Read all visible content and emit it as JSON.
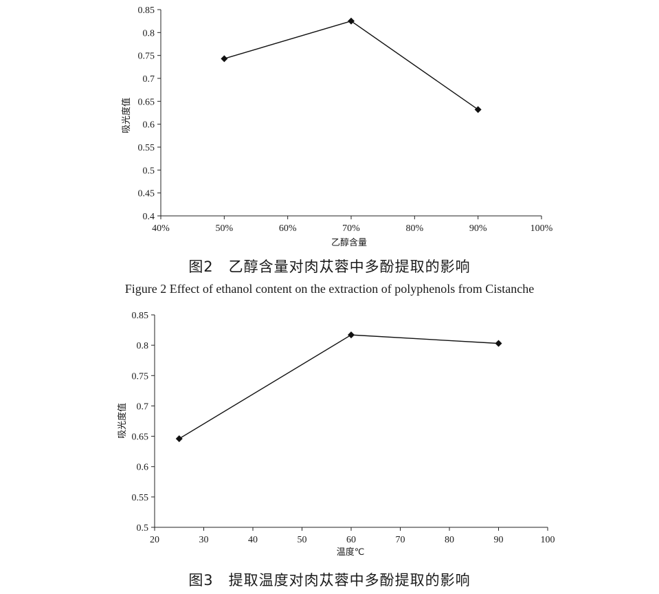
{
  "figures": [
    {
      "caption_cn": "图2　乙醇含量对肉苁蓉中多酚提取的影响",
      "caption_en": "Figure 2 Effect of ethanol content on the extraction of polyphenols from Cistanche"
    },
    {
      "caption_cn": "图3　提取温度对肉苁蓉中多酚提取的影响",
      "caption_en": ""
    }
  ],
  "chart_data": [
    {
      "type": "line",
      "title": "",
      "xlabel": "乙醇含量",
      "ylabel": "吸光度值",
      "x_ticks": [
        "40%",
        "50%",
        "60%",
        "70%",
        "80%",
        "90%",
        "100%"
      ],
      "y_ticks": [
        "0.4",
        "0.45",
        "0.5",
        "0.55",
        "0.6",
        "0.65",
        "0.7",
        "0.75",
        "0.8",
        "0.85"
      ],
      "xlim": [
        40,
        100
      ],
      "ylim": [
        0.4,
        0.85
      ],
      "grid": false,
      "marker": "diamond",
      "series": [
        {
          "x": [
            50,
            70,
            90
          ],
          "y": [
            0.743,
            0.825,
            0.632
          ]
        }
      ]
    },
    {
      "type": "line",
      "title": "",
      "xlabel": "温度℃",
      "ylabel": "吸光度值",
      "x_ticks": [
        "20",
        "30",
        "40",
        "50",
        "60",
        "70",
        "80",
        "90",
        "100"
      ],
      "y_ticks": [
        "0.5",
        "0.55",
        "0.6",
        "0.65",
        "0.7",
        "0.75",
        "0.8",
        "0.85"
      ],
      "xlim": [
        20,
        100
      ],
      "ylim": [
        0.5,
        0.85
      ],
      "grid": false,
      "marker": "diamond",
      "series": [
        {
          "x": [
            25,
            60,
            90
          ],
          "y": [
            0.646,
            0.817,
            0.803
          ]
        }
      ]
    }
  ]
}
